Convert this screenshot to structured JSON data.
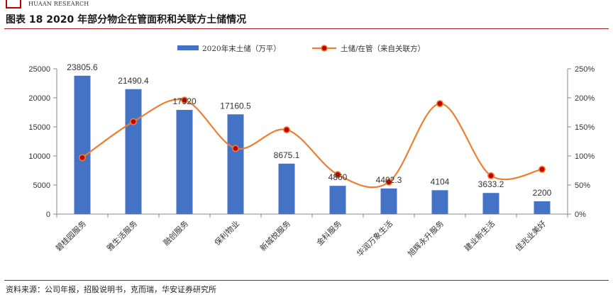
{
  "header": {
    "logo_text": "HUAAN RESEARCH",
    "figure_title": "图表 18   2020 年部分物企在管面积和关联方土储情况"
  },
  "footer": {
    "source": "资料来源：公司年报，招股说明书，克而瑞，华安证券研究所"
  },
  "colors": {
    "bar": "#4472c4",
    "line": "#ed7d31",
    "marker_fill": "#c00000",
    "rule": "#9b1b1b"
  },
  "chart_data": {
    "type": "bar",
    "categories": [
      "碧桂园服务",
      "雅生活服务",
      "融创服务",
      "保利物业",
      "新城悦服务",
      "金科服务",
      "华润万象生活",
      "旭辉永升服务",
      "建业新生活",
      "佳兆业美好"
    ],
    "series": [
      {
        "name": "2020年末土储（万平）",
        "type": "bar",
        "axis": "left",
        "values": [
          23805.6,
          21490.4,
          17920,
          17160.5,
          8675.1,
          4860,
          4402.3,
          4104,
          3633.2,
          2200
        ],
        "labels": [
          "23805.6",
          "21490.4",
          "17920",
          "17160.5",
          "8675.1",
          "4860",
          "4402.3",
          "4104",
          "3633.2",
          "2200"
        ]
      },
      {
        "name": "土储/在管（来自关联方）",
        "type": "line",
        "axis": "right",
        "values": [
          97,
          159,
          196,
          113,
          145,
          68,
          55,
          190,
          66,
          77
        ]
      }
    ],
    "y_left": {
      "min": 0,
      "max": 25000,
      "ticks": [
        0,
        5000,
        10000,
        15000,
        20000,
        25000
      ],
      "tick_labels": [
        "0",
        "5000",
        "10000",
        "15000",
        "20000",
        "25000"
      ]
    },
    "y_right": {
      "min": 0,
      "max": 250,
      "ticks": [
        0,
        50,
        100,
        150,
        200,
        250
      ],
      "tick_labels": [
        "0%",
        "50%",
        "100%",
        "150%",
        "200%",
        "250%"
      ]
    },
    "legend_position": "top-center",
    "grid": false
  }
}
